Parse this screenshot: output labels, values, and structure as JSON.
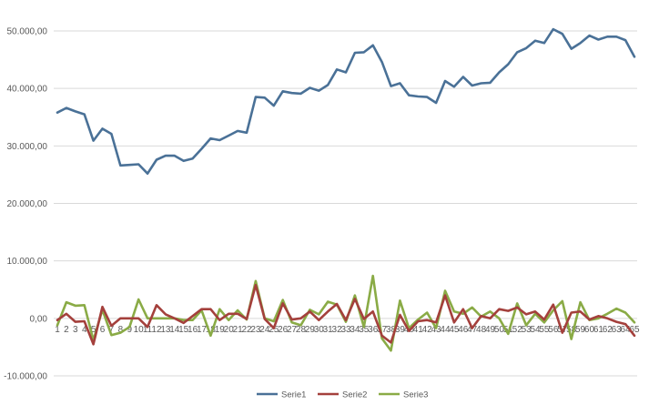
{
  "chart_data": {
    "type": "line",
    "title": "",
    "xlabel": "",
    "ylabel": "",
    "ylim": [
      -10000,
      50000
    ],
    "y_ticks": [
      -10000,
      0,
      10000,
      20000,
      30000,
      40000,
      50000
    ],
    "y_tick_labels": [
      "-10.000,00",
      "0,00",
      "10.000,00",
      "20.000,00",
      "30.000,00",
      "40.000,00",
      "50.000,00"
    ],
    "categories": [
      "1",
      "2",
      "3",
      "4",
      "5",
      "6",
      "7",
      "8",
      "9",
      "10",
      "11",
      "12",
      "13",
      "14",
      "15",
      "16",
      "17",
      "18",
      "19",
      "20",
      "21",
      "22",
      "23",
      "24",
      "25",
      "26",
      "27",
      "28",
      "29",
      "30",
      "31",
      "32",
      "33",
      "34",
      "35",
      "36",
      "37",
      "38",
      "39",
      "40",
      "41",
      "42",
      "43",
      "44",
      "45",
      "46",
      "47",
      "48",
      "49",
      "50",
      "51",
      "52",
      "53",
      "54",
      "55",
      "56",
      "57",
      "58",
      "59",
      "60",
      "61",
      "62",
      "63",
      "64",
      "65"
    ],
    "grid": "horizontal",
    "legend_position": "bottom",
    "series": [
      {
        "name": "Serie1",
        "color": "#4a7197",
        "values": [
          35800,
          36600,
          36000,
          35500,
          30900,
          33000,
          32100,
          26600,
          26700,
          26800,
          25200,
          27600,
          28300,
          28300,
          27400,
          27800,
          29500,
          31300,
          31000,
          31800,
          32600,
          32300,
          38500,
          38400,
          37000,
          39500,
          39200,
          39100,
          40100,
          39600,
          40600,
          43300,
          42800,
          46200,
          46300,
          47500,
          44600,
          40400,
          40900,
          38800,
          38600,
          38500,
          37500,
          41300,
          40300,
          42000,
          40500,
          40900,
          41000,
          42800,
          44200,
          46300,
          47000,
          48300,
          47900,
          50300,
          49500,
          46900,
          47900,
          49200,
          48500,
          49000,
          49000,
          48400,
          45500
        ]
      },
      {
        "name": "Serie2",
        "color": "#a4403c",
        "values": [
          -300,
          800,
          -600,
          -500,
          -4500,
          2000,
          -1300,
          0,
          0,
          0,
          -1500,
          2300,
          700,
          0,
          -800,
          400,
          1600,
          1600,
          -300,
          800,
          800,
          -100,
          5800,
          -100,
          -1700,
          2600,
          -200,
          0,
          1200,
          -300,
          1200,
          2500,
          -300,
          3400,
          -100,
          1200,
          -3000,
          -4200,
          600,
          -2200,
          -500,
          -300,
          -700,
          4000,
          -700,
          1600,
          -1700,
          400,
          0,
          1600,
          1300,
          1900,
          700,
          1200,
          -200,
          2400,
          -2500,
          1000,
          1200,
          -200,
          400,
          0,
          -600,
          -1000,
          -3000
        ]
      },
      {
        "name": "Serie3",
        "color": "#8aab46",
        "values": [
          -1200,
          2800,
          2200,
          2300,
          -3800,
          1500,
          -2900,
          -2500,
          -1500,
          3300,
          0,
          0,
          0,
          0,
          -300,
          -300,
          1400,
          -3000,
          1600,
          -300,
          1400,
          -200,
          6500,
          0,
          -500,
          3200,
          -700,
          -1200,
          1500,
          700,
          2900,
          2400,
          -600,
          4000,
          -1500,
          7400,
          -3500,
          -5600,
          3100,
          -1700,
          -200,
          1000,
          -1700,
          4800,
          1200,
          800,
          1900,
          300,
          1200,
          0,
          -2700,
          2600,
          -1200,
          800,
          -700,
          1400,
          3000,
          -3600,
          2800,
          -300,
          0,
          800,
          1700,
          1000,
          -700
        ]
      }
    ]
  }
}
